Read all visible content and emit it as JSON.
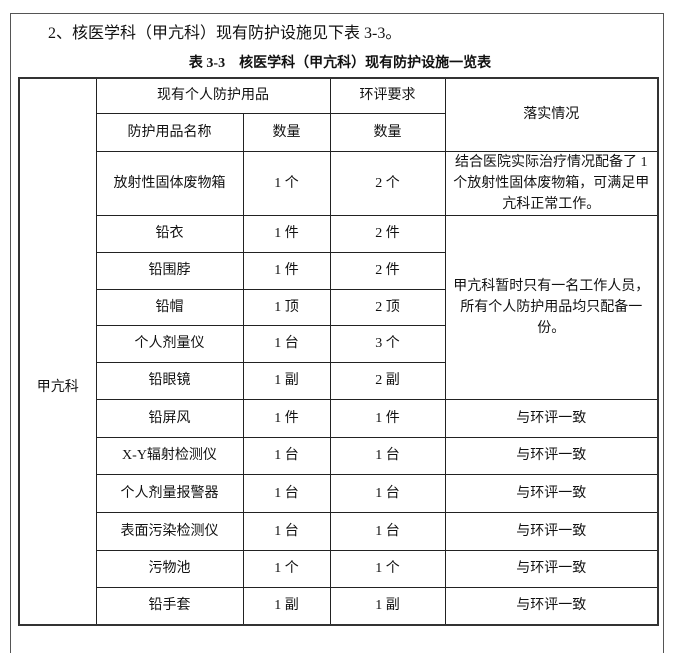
{
  "intro": "2、核医学科（甲亢科）现有防护设施见下表 3-3。",
  "caption": "表 3-3　核医学科（甲亢科）现有防护设施一览表",
  "header": {
    "existing": "现有个人防护用品",
    "requirement": "环评要求",
    "status": "落实情况",
    "name": "防护用品名称",
    "qty": "数量",
    "req_qty": "数量"
  },
  "department": "甲亢科",
  "rows": [
    {
      "name": "放射性固体废物箱",
      "qty": "1 个",
      "req": "2 个",
      "status": "结合医院实际治疗情况配备了 1 个放射性固体废物箱，可满足甲亢科正常工作。"
    },
    {
      "name": "铅衣",
      "qty": "1 件",
      "req": "2 件"
    },
    {
      "name": "铅围脖",
      "qty": "1 件",
      "req": "2 件"
    },
    {
      "name": "铅帽",
      "qty": "1 顶",
      "req": "2 顶"
    },
    {
      "name": "个人剂量仪",
      "qty": "1 台",
      "req": "3 个"
    },
    {
      "name": "铅眼镜",
      "qty": "1 副",
      "req": "2 副"
    },
    {
      "name": "铅屏风",
      "qty": "1 件",
      "req": "1 件",
      "status": "与环评一致"
    },
    {
      "name": "X-Y辐射检测仪",
      "qty": "1 台",
      "req": "1 台",
      "status": "与环评一致"
    },
    {
      "name": "个人剂量报警器",
      "qty": "1 台",
      "req": "1 台",
      "status": "与环评一致"
    },
    {
      "name": "表面污染检测仪",
      "qty": "1 台",
      "req": "1 台",
      "status": "与环评一致"
    },
    {
      "name": "污物池",
      "qty": "1 个",
      "req": "1 个",
      "status": "与环评一致"
    },
    {
      "name": "铅手套",
      "qty": "1 副",
      "req": "1 副",
      "status": "与环评一致"
    }
  ],
  "group_status": "甲亢科暂时只有一名工作人员，所有个人防护用品均只配备一份。"
}
